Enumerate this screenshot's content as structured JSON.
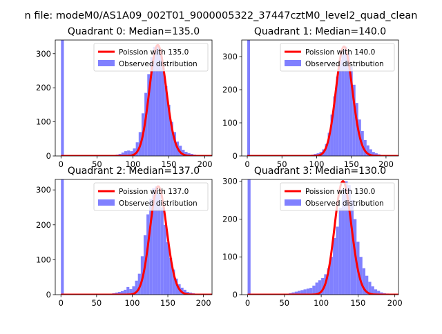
{
  "suptitle": "n file: modeM0/AS1A09_002T01_9000005322_37447cztM0_level2_quad_clean",
  "colors": {
    "hist": "#8080ff",
    "poisson": "#ff0000",
    "axis": "#000000",
    "legend_border": "#cccccc"
  },
  "chart_data": [
    {
      "type": "histogram",
      "title": "Quadrant 0: Median=135.0",
      "xlim": [
        -8,
        210
      ],
      "ylim": [
        0,
        340
      ],
      "xticks": [
        0,
        50,
        100,
        150,
        200
      ],
      "yticks": [
        0,
        100,
        200,
        300
      ],
      "legend": {
        "position": "top-right",
        "entries": [
          "Poission with 135.0",
          "Observed distribution"
        ]
      },
      "poisson_mean": 135,
      "bin_width": 4,
      "x": [
        0,
        76,
        80,
        84,
        88,
        92,
        96,
        100,
        104,
        108,
        112,
        116,
        120,
        124,
        128,
        132,
        136,
        140,
        144,
        148,
        152,
        156,
        160,
        164,
        168,
        172,
        176,
        180,
        184,
        188,
        192,
        196
      ],
      "values": [
        340,
        4,
        6,
        10,
        14,
        16,
        14,
        22,
        40,
        70,
        125,
        185,
        240,
        290,
        320,
        325,
        300,
        260,
        205,
        150,
        100,
        70,
        42,
        30,
        18,
        12,
        8,
        6,
        4,
        3,
        2,
        1
      ]
    },
    {
      "type": "histogram",
      "title": "Quadrant 1: Median=140.0",
      "xlim": [
        -8,
        218
      ],
      "ylim": [
        0,
        350
      ],
      "xticks": [
        0,
        50,
        100,
        150,
        200
      ],
      "yticks": [
        0,
        100,
        200,
        300
      ],
      "legend": {
        "position": "top-right",
        "entries": [
          "Poission with 140.0",
          "Observed distribution"
        ]
      },
      "poisson_mean": 140,
      "bin_width": 4,
      "x": [
        0,
        88,
        92,
        96,
        100,
        104,
        108,
        112,
        116,
        120,
        124,
        128,
        132,
        136,
        140,
        144,
        148,
        152,
        156,
        160,
        164,
        168,
        172,
        176,
        180,
        184,
        188,
        192,
        196,
        200,
        204
      ],
      "values": [
        350,
        3,
        4,
        6,
        8,
        12,
        20,
        36,
        70,
        125,
        180,
        240,
        290,
        320,
        330,
        310,
        270,
        215,
        160,
        110,
        75,
        48,
        32,
        20,
        12,
        8,
        5,
        3,
        2,
        1,
        1
      ]
    },
    {
      "type": "histogram",
      "title": "Quadrant 2: Median=137.0",
      "xlim": [
        -8,
        212
      ],
      "ylim": [
        0,
        330
      ],
      "xticks": [
        0,
        50,
        100,
        150,
        200
      ],
      "yticks": [
        0,
        100,
        200,
        300
      ],
      "legend": {
        "position": "top-right",
        "entries": [
          "Poission with 137.0",
          "Observed distribution"
        ]
      },
      "poisson_mean": 137,
      "bin_width": 4,
      "x": [
        0,
        72,
        76,
        80,
        84,
        88,
        92,
        96,
        100,
        104,
        108,
        112,
        116,
        120,
        124,
        128,
        132,
        136,
        140,
        144,
        148,
        152,
        156,
        160,
        164,
        168,
        172,
        176,
        180,
        184,
        188,
        192,
        196
      ],
      "values": [
        330,
        4,
        6,
        8,
        10,
        14,
        22,
        16,
        24,
        40,
        60,
        110,
        170,
        230,
        275,
        305,
        310,
        290,
        250,
        200,
        150,
        105,
        72,
        46,
        30,
        20,
        14,
        8,
        6,
        4,
        3,
        2,
        1
      ]
    },
    {
      "type": "histogram",
      "title": "Quadrant 3: Median=130.0",
      "xlim": [
        -8,
        205
      ],
      "ylim": [
        0,
        305
      ],
      "xticks": [
        0,
        50,
        100,
        150,
        200
      ],
      "yticks": [
        0,
        100,
        200,
        300
      ],
      "legend": {
        "position": "top-right",
        "entries": [
          "Poission with 130.0",
          "Observed distribution"
        ]
      },
      "poisson_mean": 130,
      "bin_width": 4,
      "x": [
        0,
        56,
        60,
        64,
        68,
        72,
        76,
        80,
        84,
        88,
        92,
        96,
        100,
        104,
        108,
        112,
        116,
        120,
        124,
        128,
        132,
        136,
        140,
        144,
        148,
        152,
        156,
        160,
        164,
        168,
        172,
        176,
        180,
        184,
        188,
        192
      ],
      "values": [
        305,
        4,
        6,
        8,
        10,
        12,
        14,
        16,
        18,
        24,
        32,
        38,
        44,
        54,
        70,
        100,
        150,
        180,
        230,
        280,
        300,
        290,
        250,
        200,
        140,
        100,
        70,
        50,
        34,
        22,
        14,
        10,
        6,
        4,
        3,
        2
      ]
    }
  ]
}
